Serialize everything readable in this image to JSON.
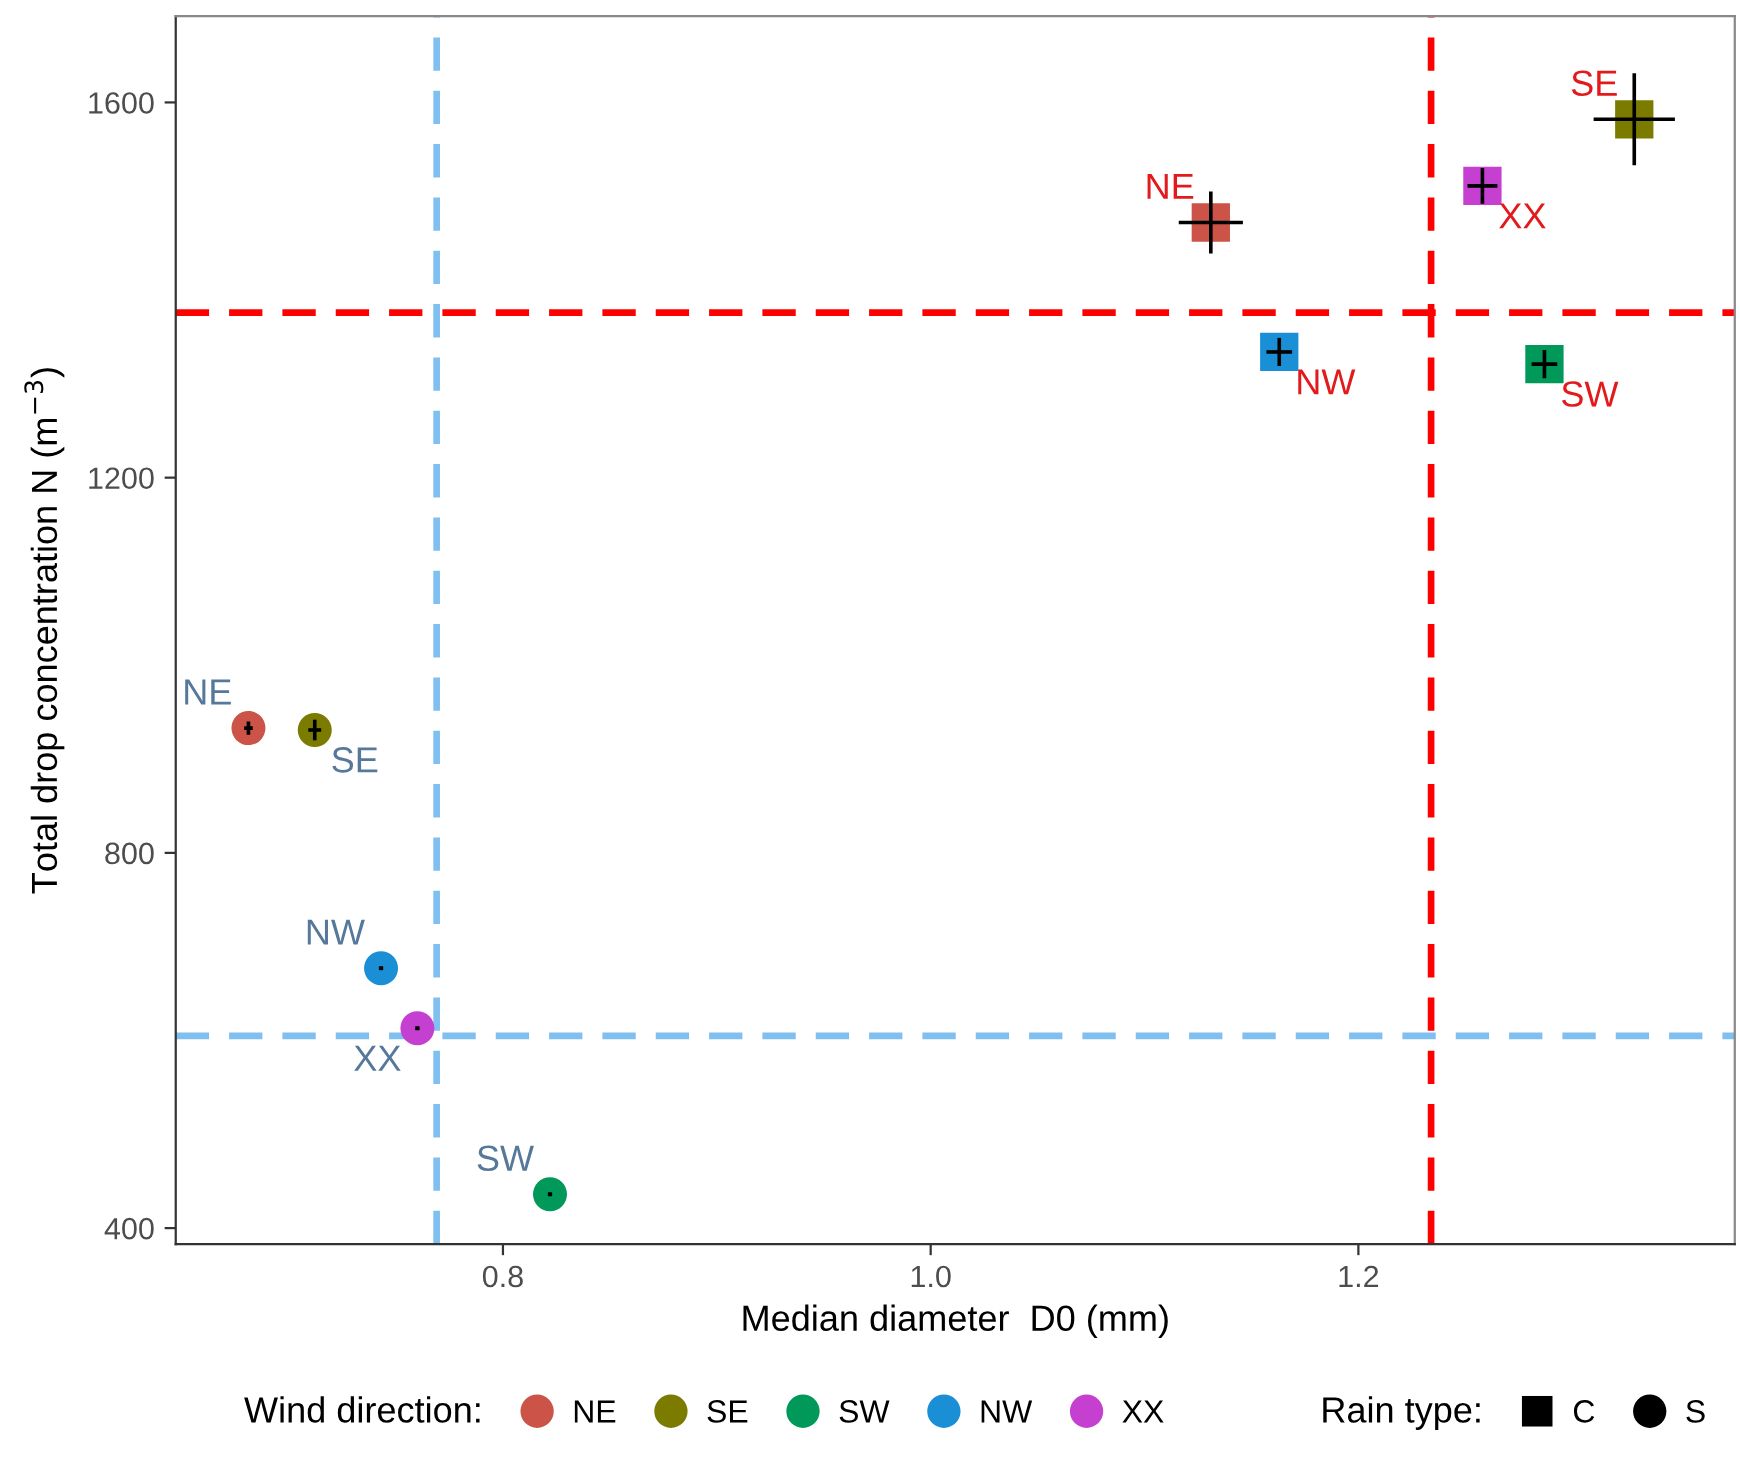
{
  "chart_data": {
    "type": "scatter",
    "xlabel": "Median diameter  D0 (mm)",
    "ylabel": "Total drop concentration N (m$^{−3}$)",
    "legend_title": [
      "Wind direction:",
      "Rain type:"
    ],
    "legend": "bottom",
    "series": [
      {
        "name": "NE",
        "marker": "circle",
        "color": "#cc5348",
        "x": [
          0.681
        ],
        "values": [
          933
        ],
        "errors": [
          7
        ],
        "xerrors": [
          0.002
        ]
      },
      {
        "name": "SE",
        "marker": "circle",
        "color": "#7b7b00",
        "x": [
          0.712
        ],
        "values": [
          931
        ],
        "errors": [
          11
        ],
        "xerrors": [
          0.003
        ]
      },
      {
        "name": "SW",
        "marker": "circle",
        "color": "#00995a",
        "x": [
          0.822
        ],
        "values": [
          436
        ],
        "errors": [
          2
        ],
        "xerrors": [
          0.001
        ]
      },
      {
        "name": "NW",
        "marker": "circle",
        "color": "#1b8fd6",
        "x": [
          0.743
        ],
        "values": [
          677
        ],
        "errors": [
          2
        ],
        "xerrors": [
          0.001
        ]
      },
      {
        "name": "XX",
        "marker": "circle",
        "color": "#c540d0",
        "x": [
          0.76
        ],
        "values": [
          613
        ],
        "errors": [
          2
        ],
        "xerrors": [
          0.001
        ]
      },
      {
        "marker": "square",
        "color": "#cc5348",
        "x": [
          1.131
        ],
        "values": [
          1472
        ],
        "errors": [
          33
        ],
        "xerrors": [
          0.015
        ]
      },
      {
        "marker": "square",
        "color": "#7b7b00",
        "x": [
          1.329
        ],
        "values": [
          1582
        ],
        "errors": [
          49
        ],
        "xerrors": [
          0.019
        ]
      },
      {
        "marker": "square",
        "color": "#00995a",
        "x": [
          1.287
        ],
        "values": [
          1321
        ],
        "errors": [
          15
        ],
        "xerrors": [
          0.006
        ]
      },
      {
        "marker": "square",
        "color": "#1b8fd6",
        "x": [
          1.163
        ],
        "values": [
          1334
        ],
        "errors": [
          15
        ],
        "xerrors": [
          0.006
        ]
      },
      {
        "marker": "square",
        "color": "#c540d0",
        "x": [
          1.258
        ],
        "values": [
          1511
        ],
        "errors": [
          19
        ],
        "xerrors": [
          0.007
        ]
      },
      {
        "name": "C",
        "marker": "square",
        "color": "#000000"
      },
      {
        "name": "S",
        "marker": "circle",
        "color": "#000000"
      }
    ],
    "xlim": [
      0.647,
      1.376
    ],
    "ylim": [
      383,
      1692
    ],
    "xticks": [
      0.8,
      {
        "value": 1.0,
        "label": "1.0"
      },
      1.2
    ],
    "yticks": [
      400,
      800,
      1200,
      1600
    ],
    "ref_lines": [
      {
        "axis": "x",
        "value": 0.769,
        "color": "#80c0f0",
        "line_style": "dashed"
      },
      {
        "axis": "y",
        "value": 605,
        "color": "#80c0f0",
        "line_style": "dashed"
      },
      {
        "axis": "x",
        "value": 1.234,
        "color": "#ff0000",
        "line_style": "dashed"
      },
      {
        "axis": "y",
        "value": 1376,
        "color": "#ff0000",
        "line_style": "dashed"
      }
    ],
    "annotations": [
      {
        "text": "NE",
        "x": 0.681,
        "y": 933
      },
      {
        "text": "SE",
        "x": 0.712,
        "y": 931
      },
      {
        "text": "SW",
        "x": 0.822,
        "y": 436
      },
      {
        "text": "NW",
        "x": 0.743,
        "y": 677
      },
      {
        "text": "XX",
        "x": 0.76,
        "y": 613
      },
      {
        "text": "NE",
        "x": 1.131,
        "y": 1472
      },
      {
        "text": "SE",
        "x": 1.329,
        "y": 1582
      },
      {
        "text": "SW",
        "x": 1.287,
        "y": 1321
      },
      {
        "text": "NW",
        "x": 1.163,
        "y": 1334
      },
      {
        "text": "XX",
        "x": 1.258,
        "y": 1511
      }
    ]
  }
}
